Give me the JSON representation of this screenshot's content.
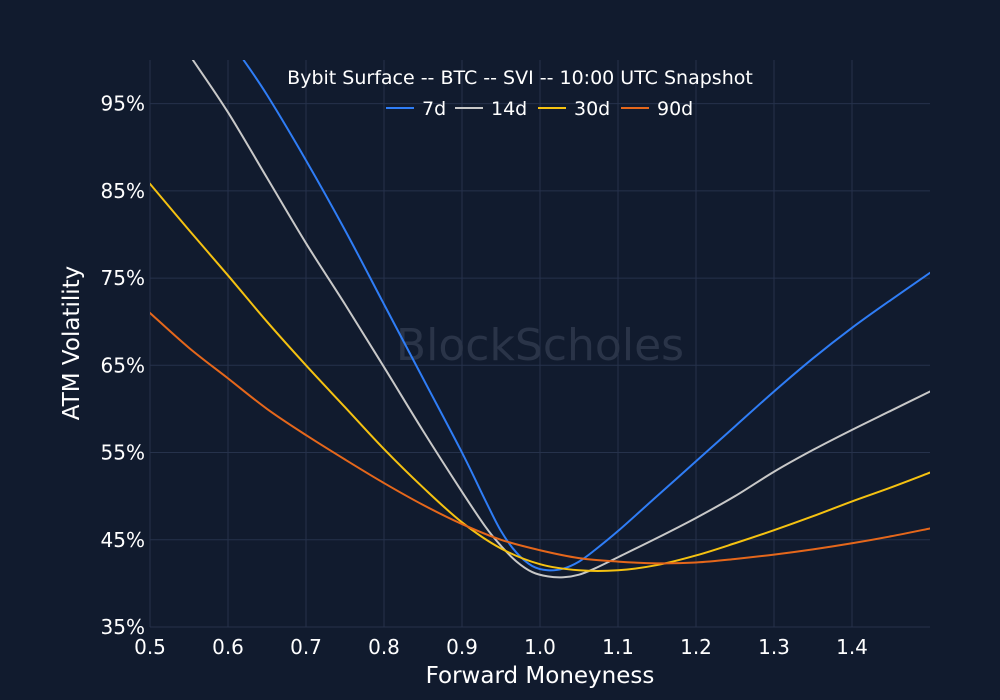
{
  "chart_data": {
    "type": "line",
    "title": "Bybit Surface -- BTC -- SVI -- 10:00 UTC Snapshot",
    "xlabel": "Forward Moneyness",
    "ylabel": "ATM Volatility",
    "watermark": "BlockScholes",
    "xlim": [
      0.5,
      1.5
    ],
    "ylim": [
      35,
      100
    ],
    "x_ticks": [
      0.5,
      0.6,
      0.7,
      0.8,
      0.9,
      1.0,
      1.1,
      1.2,
      1.3,
      1.4
    ],
    "x_tick_labels": [
      "0.5",
      "0.6",
      "0.7",
      "0.8",
      "0.9",
      "1.0",
      "1.1",
      "1.2",
      "1.3",
      "1.4"
    ],
    "y_ticks": [
      35,
      45,
      55,
      65,
      75,
      85,
      95
    ],
    "y_tick_labels": [
      "35%",
      "45%",
      "55%",
      "65%",
      "75%",
      "85%",
      "95%"
    ],
    "grid": true,
    "legend_position": "top-center",
    "background": "#111b2e",
    "series": [
      {
        "name": "7d",
        "color": "#2f7df6",
        "x": [
          0.62,
          0.65,
          0.7,
          0.75,
          0.8,
          0.85,
          0.9,
          0.93,
          0.95,
          0.97,
          0.99,
          1.01,
          1.03,
          1.05,
          1.07,
          1.1,
          1.15,
          1.2,
          1.25,
          1.3,
          1.35,
          1.4,
          1.45,
          1.5
        ],
        "y": [
          100,
          96,
          88.5,
          80.5,
          72,
          63.5,
          55,
          49.5,
          46,
          43.5,
          42,
          41.5,
          41.7,
          42.5,
          43.8,
          46,
          50,
          54,
          58,
          62,
          65.8,
          69.3,
          72.5,
          75.6
        ]
      },
      {
        "name": "14d",
        "color": "#c8c8c8",
        "x": [
          0.555,
          0.6,
          0.65,
          0.7,
          0.75,
          0.8,
          0.85,
          0.9,
          0.93,
          0.95,
          0.97,
          0.99,
          1.01,
          1.03,
          1.05,
          1.07,
          1.1,
          1.15,
          1.2,
          1.25,
          1.3,
          1.35,
          1.4,
          1.45,
          1.5
        ],
        "y": [
          100,
          94,
          86.5,
          79,
          72,
          64.8,
          57.5,
          50.5,
          46.5,
          44.3,
          42.5,
          41.3,
          40.8,
          40.7,
          41,
          41.7,
          43,
          45.2,
          47.5,
          50,
          52.8,
          55.3,
          57.6,
          59.8,
          62
        ]
      },
      {
        "name": "30d",
        "color": "#f5c211",
        "x": [
          0.5,
          0.55,
          0.6,
          0.65,
          0.7,
          0.75,
          0.8,
          0.85,
          0.9,
          0.95,
          1.0,
          1.05,
          1.1,
          1.15,
          1.2,
          1.25,
          1.3,
          1.35,
          1.4,
          1.45,
          1.5
        ],
        "y": [
          85.8,
          80.5,
          75.3,
          70,
          65,
          60.2,
          55.4,
          51,
          47,
          44,
          42.2,
          41.5,
          41.5,
          42.1,
          43.2,
          44.6,
          46.1,
          47.7,
          49.4,
          51,
          52.7
        ]
      },
      {
        "name": "90d",
        "color": "#e5671b",
        "x": [
          0.5,
          0.55,
          0.6,
          0.65,
          0.7,
          0.75,
          0.8,
          0.85,
          0.9,
          0.95,
          1.0,
          1.05,
          1.1,
          1.15,
          1.2,
          1.25,
          1.3,
          1.35,
          1.4,
          1.45,
          1.5
        ],
        "y": [
          71,
          67,
          63.5,
          60,
          57,
          54.2,
          51.5,
          49,
          46.8,
          45,
          43.8,
          42.9,
          42.5,
          42.3,
          42.4,
          42.8,
          43.3,
          43.9,
          44.6,
          45.4,
          46.3
        ]
      }
    ]
  }
}
